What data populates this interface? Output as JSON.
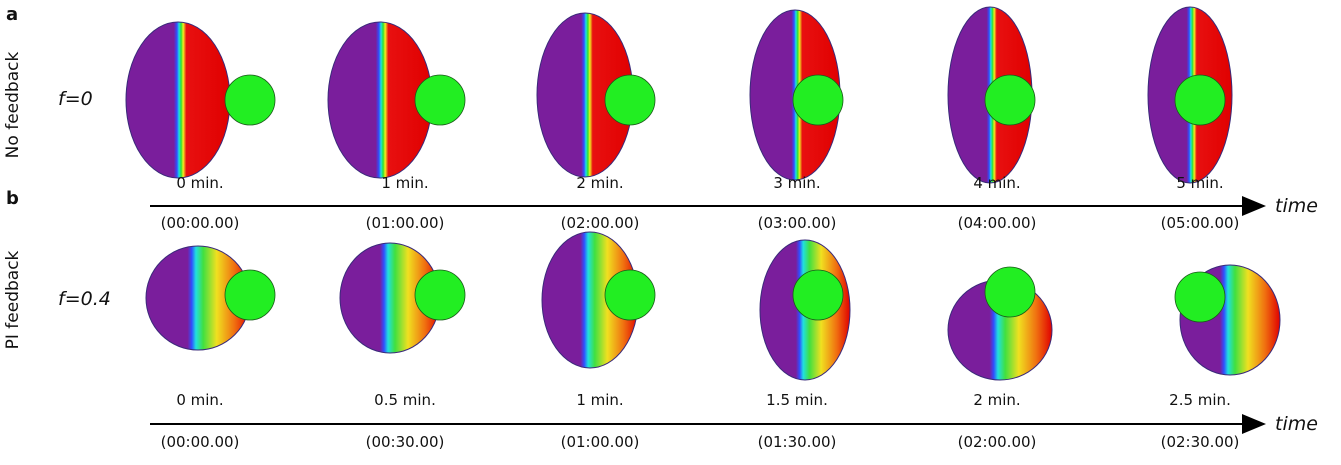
{
  "panels": [
    {
      "letter": "a",
      "row_label": "No feedback",
      "f_label": "f=0",
      "axis_label": "time",
      "times": [
        "0 min.",
        "1 min.",
        "2 min.",
        "3 min.",
        "4 min.",
        "5 min."
      ],
      "clocks": [
        "(00:00.00)",
        "(01:00.00)",
        "(02:00.00)",
        "(03:00.00)",
        "(04:00.00)",
        "(05:00.00)"
      ]
    },
    {
      "letter": "b",
      "row_label": "PI feedback",
      "f_label": "f=0.4",
      "axis_label": "time",
      "times": [
        "0 min.",
        "0.5 min.",
        "1 min.",
        "1.5 min.",
        "2 min.",
        "2.5 min."
      ],
      "clocks": [
        "(00:00.00)",
        "(00:30.00)",
        "(01:00.00)",
        "(01:30.00)",
        "(02:00.00)",
        "(02:30.00)"
      ]
    }
  ]
}
